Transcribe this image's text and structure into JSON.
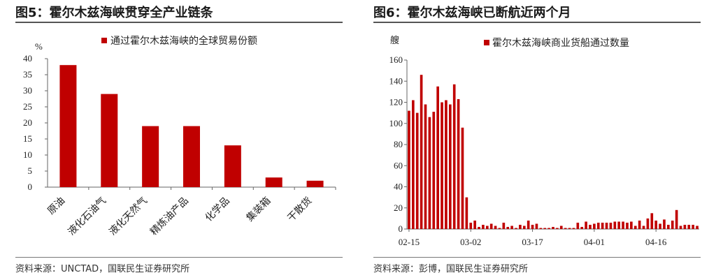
{
  "left": {
    "title": "图5：霍尔木兹海峡贯穿全产业链条",
    "source": "资料来源：UNCTAD，国联民生证券研究所",
    "chart_data": {
      "type": "bar",
      "legend": "通过霍尔木兹海峡的全球贸易份额",
      "legend_position": "top",
      "yunit": "%",
      "ylim": [
        0,
        40
      ],
      "yticks": [
        0,
        5,
        10,
        15,
        20,
        25,
        30,
        35,
        40
      ],
      "categories": [
        "原油",
        "液化石油气",
        "液化天然气",
        "精炼油产品",
        "化学品",
        "集装箱",
        "干散货"
      ],
      "values": [
        38,
        29,
        19,
        19,
        13,
        3,
        2
      ],
      "color": "#c00000",
      "grid": false
    }
  },
  "right": {
    "title": "图6：霍尔木兹海峡已断航近两个月",
    "source": "资料来源：彭博，国联民生证券研究所",
    "chart_data": {
      "type": "bar",
      "legend": "霍尔木兹海峡商业货船通过数量",
      "legend_position": "top",
      "yunit": "艘",
      "ylim": [
        0,
        160
      ],
      "yticks": [
        0,
        20,
        40,
        60,
        80,
        100,
        120,
        140,
        160
      ],
      "xtick_labels": [
        "02-15",
        "03-02",
        "03-17",
        "04-01",
        "04-16"
      ],
      "xtick_index": [
        0,
        15,
        30,
        45,
        60
      ],
      "values": [
        112,
        122,
        110,
        146,
        118,
        106,
        111,
        135,
        120,
        122,
        118,
        137,
        123,
        96,
        30,
        6,
        8,
        2,
        4,
        3,
        5,
        3,
        1,
        6,
        2,
        3,
        1,
        4,
        3,
        8,
        4,
        5,
        1,
        1,
        1,
        2,
        1,
        3,
        1,
        1,
        1,
        6,
        2,
        7,
        4,
        5,
        6,
        6,
        6,
        6,
        7,
        7,
        7,
        6,
        7,
        3,
        8,
        3,
        10,
        15,
        8,
        5,
        9,
        4,
        8,
        18,
        3,
        4,
        4,
        4,
        3
      ],
      "color": "#c00000",
      "grid": false
    }
  }
}
